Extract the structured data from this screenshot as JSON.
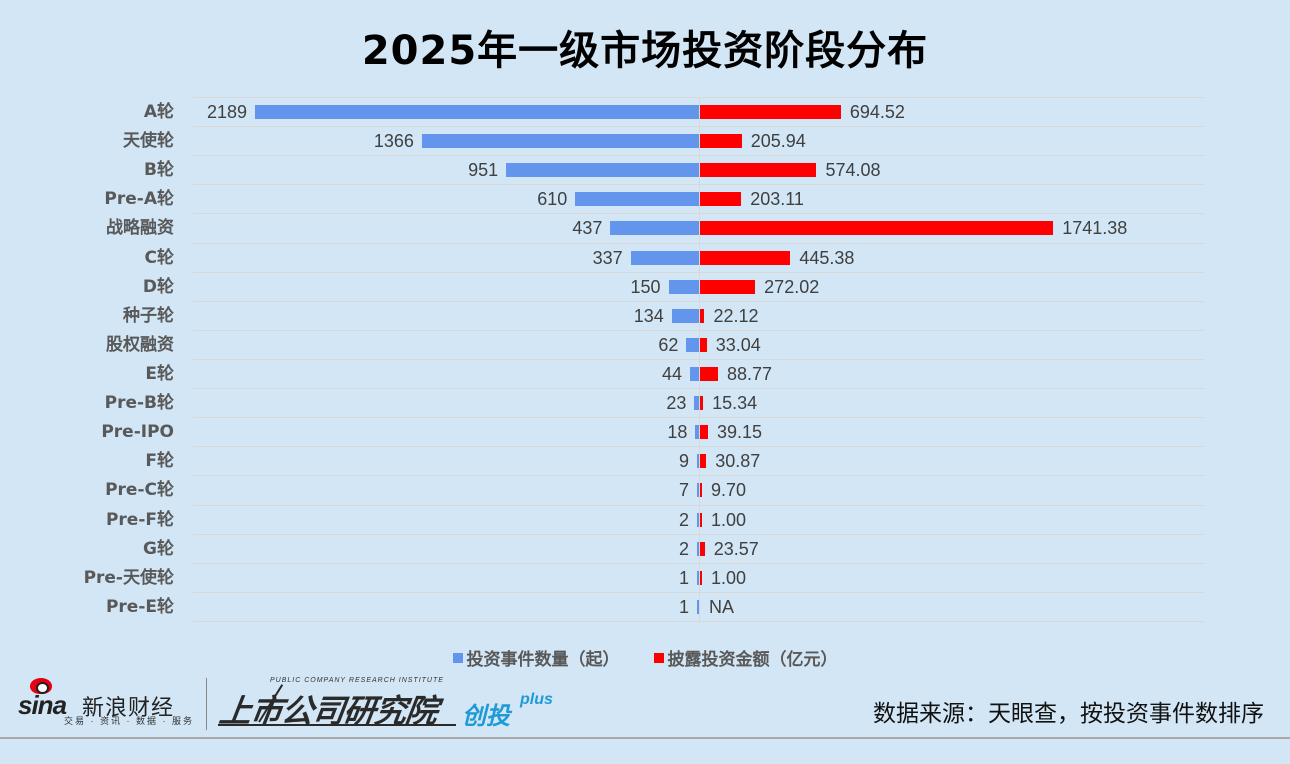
{
  "title": "2025年一级市场投资阶段分布",
  "legend": {
    "left": {
      "label": "投资事件数量（起）",
      "color": "#6495ED"
    },
    "right": {
      "label": "披露投资金额（亿元）",
      "color": "#FF0000"
    }
  },
  "source": "数据来源：天眼查，按投资事件数排序",
  "logos": {
    "sina": {
      "word": "sina",
      "cn": "新浪财经",
      "sub": "交易 · 资讯 · 数据 · 服务"
    },
    "institute": {
      "en": "PUBLIC COMPANY RESEARCH INSTITUTE",
      "cn": "上市公司研究院",
      "brand": "创投",
      "plus": "plus"
    }
  },
  "chart_data": {
    "type": "bar",
    "orientation": "horizontal-diverging",
    "title": "2025年一级市场投资阶段分布",
    "categories": [
      "A轮",
      "天使轮",
      "B轮",
      "Pre-A轮",
      "战略融资",
      "C轮",
      "D轮",
      "种子轮",
      "股权融资",
      "E轮",
      "Pre-B轮",
      "Pre-IPO",
      "F轮",
      "Pre-C轮",
      "Pre-F轮",
      "G轮",
      "Pre-天使轮",
      "Pre-E轮"
    ],
    "series": [
      {
        "name": "投资事件数量（起）",
        "color": "#6495ED",
        "side": "left",
        "values": [
          2189,
          1366,
          951,
          610,
          437,
          337,
          150,
          134,
          62,
          44,
          23,
          18,
          9,
          7,
          2,
          2,
          1,
          1
        ],
        "labels": [
          "2189",
          "1366",
          "951",
          "610",
          "437",
          "337",
          "150",
          "134",
          "62",
          "44",
          "23",
          "18",
          "9",
          "7",
          "2",
          "2",
          "1",
          "1"
        ]
      },
      {
        "name": "披露投资金额（亿元）",
        "color": "#FF0000",
        "side": "right",
        "values": [
          694.52,
          205.94,
          574.08,
          203.11,
          1741.38,
          445.38,
          272.02,
          22.12,
          33.04,
          88.77,
          15.34,
          39.15,
          30.87,
          9.7,
          1.0,
          23.57,
          1.0,
          null
        ],
        "labels": [
          "694.52",
          "205.94",
          "574.08",
          "203.11",
          "1741.38",
          "445.38",
          "272.02",
          "22.12",
          "33.04",
          "88.77",
          "15.34",
          "39.15",
          "30.87",
          "9.70",
          "1.00",
          "23.57",
          "1.00",
          "NA"
        ]
      }
    ],
    "legend_position": "bottom",
    "grid": "horizontal",
    "note": "数据来源：天眼查，按投资事件数排序"
  }
}
